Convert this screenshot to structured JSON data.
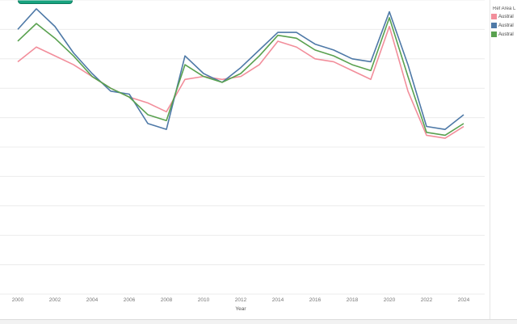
{
  "chart_data": {
    "type": "line",
    "xlabel": "Year",
    "ylabel": "",
    "x": [
      2000,
      2001,
      2002,
      2003,
      2004,
      2005,
      2006,
      2007,
      2008,
      2009,
      2010,
      2011,
      2012,
      2013,
      2014,
      2015,
      2016,
      2017,
      2018,
      2019,
      2020,
      2021,
      2022,
      2023,
      2024
    ],
    "xticks": [
      "2000",
      "2002",
      "2004",
      "2006",
      "2008",
      "2010",
      "2012",
      "2014",
      "2016",
      "2018",
      "2020",
      "2022",
      "2024"
    ],
    "ylim": [
      0,
      100
    ],
    "grid": true,
    "legend_position": "top-right",
    "series": [
      {
        "name": "Austral",
        "color": "#f28e9b",
        "values": [
          79,
          84,
          81,
          78,
          74,
          70,
          67,
          65,
          62,
          73,
          74,
          73,
          74,
          78,
          86,
          84,
          80,
          79,
          76,
          73,
          91,
          69,
          54,
          53,
          57
        ]
      },
      {
        "name": "Austral",
        "color": "#4e79a7",
        "values": [
          90,
          97,
          91,
          82,
          75,
          69,
          68,
          58,
          56,
          81,
          75,
          72,
          77,
          83,
          89,
          89,
          85,
          83,
          80,
          79,
          96,
          78,
          57,
          56,
          61
        ]
      },
      {
        "name": "Austral",
        "color": "#59a14f",
        "values": [
          86,
          92,
          87,
          81,
          74,
          70,
          67,
          61,
          59,
          78,
          74,
          72,
          75,
          81,
          88,
          87,
          83,
          81,
          78,
          76,
          94,
          74,
          55,
          54,
          58
        ]
      }
    ]
  },
  "legend": {
    "title": "Ref Area L"
  }
}
